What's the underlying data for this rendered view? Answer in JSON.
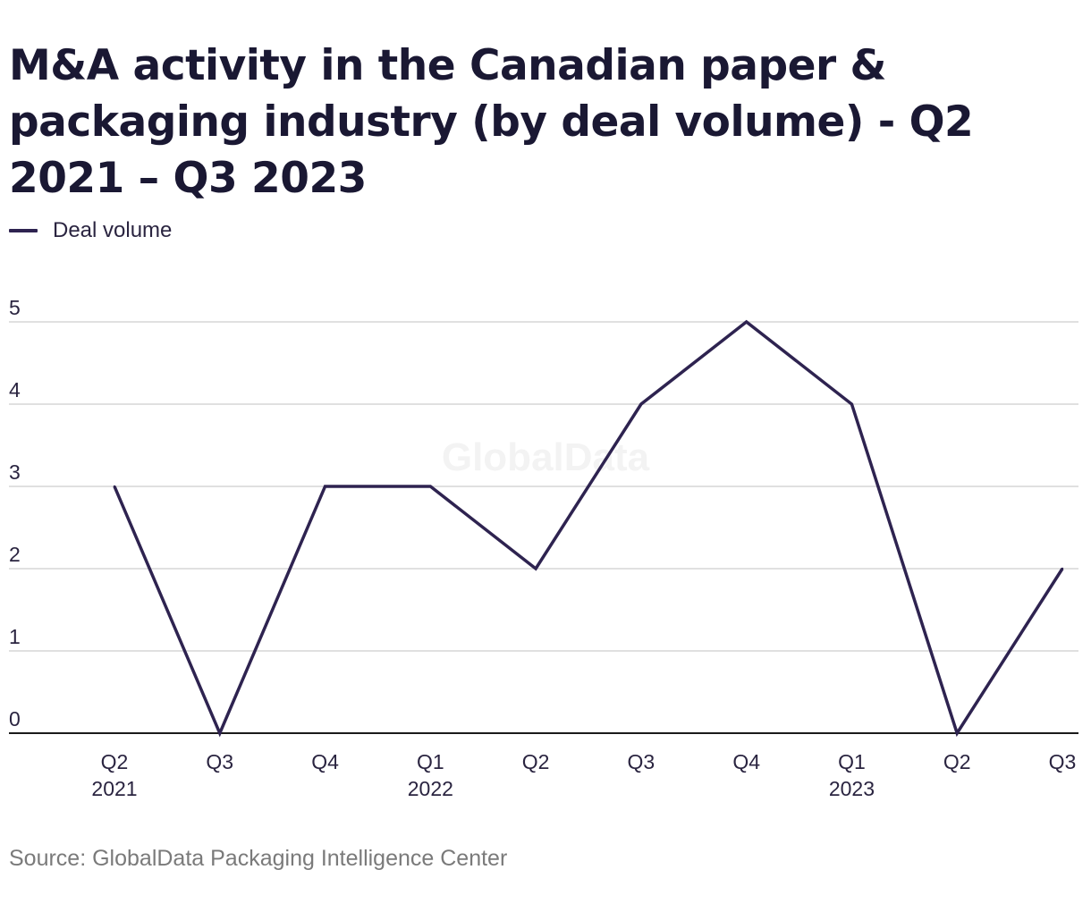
{
  "title": "M&A activity in the Canadian paper & packaging industry (by deal volume) - Q2 2021 – Q3 2023",
  "legend": {
    "label": "Deal volume"
  },
  "watermark": "GlobalData",
  "source": "Source: GlobalData Packaging Intelligence Center",
  "colors": {
    "line": "#2e2350",
    "grid": "#d6d6d6",
    "axis": "#1a1a1a",
    "text": "#2a2440"
  },
  "chart_data": {
    "type": "line",
    "title": "M&A activity in the Canadian paper & packaging industry (by deal volume) - Q2 2021 – Q3 2023",
    "categories": [
      "Q2 2021",
      "Q3 2021",
      "Q4 2021",
      "Q1 2022",
      "Q2 2022",
      "Q3 2022",
      "Q4 2022",
      "Q1 2023",
      "Q2 2023",
      "Q3 2023"
    ],
    "tick_labels": [
      [
        "Q2",
        "2021"
      ],
      [
        "Q3",
        ""
      ],
      [
        "Q4",
        ""
      ],
      [
        "Q1",
        "2022"
      ],
      [
        "Q2",
        ""
      ],
      [
        "Q3",
        ""
      ],
      [
        "Q4",
        ""
      ],
      [
        "Q1",
        "2023"
      ],
      [
        "Q2",
        ""
      ],
      [
        "Q3",
        ""
      ]
    ],
    "series": [
      {
        "name": "Deal volume",
        "values": [
          3,
          0,
          3,
          3,
          2,
          4,
          5,
          4,
          0,
          2
        ]
      }
    ],
    "xlabel": "",
    "ylabel": "",
    "ylim": [
      0,
      5
    ],
    "yticks": [
      0,
      1,
      2,
      3,
      4,
      5
    ],
    "grid": true,
    "legend": "top-left"
  }
}
